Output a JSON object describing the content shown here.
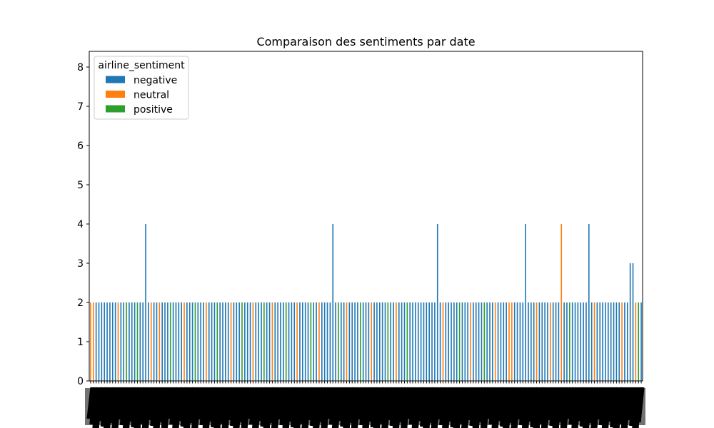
{
  "chart_data": {
    "type": "bar",
    "title": "Comparaison des sentiments par date",
    "xlabel": "",
    "ylabel": "",
    "ylim": [
      0,
      8.4
    ],
    "yticks": [
      0,
      1,
      2,
      3,
      4,
      5,
      6,
      7,
      8
    ],
    "grid": false,
    "x_tick_labels_legible": false,
    "legend": {
      "title": "airline_sentiment",
      "location": "top-left"
    },
    "series": [
      {
        "name": "negative",
        "color": "#1f77b4"
      },
      {
        "name": "neutral",
        "color": "#ff7f0e"
      },
      {
        "name": "positive",
        "color": "#2ca02c"
      }
    ],
    "groups": [
      {
        "s": "neutral",
        "v": 2
      },
      {
        "s": "neutral",
        "v": 2
      },
      {
        "s": "negative",
        "v": 2
      },
      {
        "s": "negative",
        "v": 2
      },
      {
        "s": "negative",
        "v": 2
      },
      {
        "s": "negative",
        "v": 2
      },
      {
        "s": "negative",
        "v": 2
      },
      {
        "s": "negative",
        "v": 2
      },
      {
        "s": "negative",
        "v": 2
      },
      {
        "s": "negative",
        "v": 2
      },
      {
        "s": "neutral",
        "v": 2
      },
      {
        "s": "negative",
        "v": 2
      },
      {
        "s": "negative",
        "v": 2
      },
      {
        "s": "positive",
        "v": 2
      },
      {
        "s": "negative",
        "v": 2
      },
      {
        "s": "negative",
        "v": 2
      },
      {
        "s": "negative",
        "v": 2
      },
      {
        "s": "positive",
        "v": 2
      },
      {
        "s": "negative",
        "v": 2
      },
      {
        "s": "negative",
        "v": 2
      },
      {
        "s": "negative",
        "v": 4
      },
      {
        "s": "negative",
        "v": 2
      },
      {
        "s": "neutral",
        "v": 2
      },
      {
        "s": "negative",
        "v": 2
      },
      {
        "s": "negative",
        "v": 2
      },
      {
        "s": "neutral",
        "v": 2
      },
      {
        "s": "negative",
        "v": 2
      },
      {
        "s": "negative",
        "v": 2
      },
      {
        "s": "negative",
        "v": 2
      },
      {
        "s": "positive",
        "v": 2
      },
      {
        "s": "negative",
        "v": 2
      },
      {
        "s": "negative",
        "v": 2
      },
      {
        "s": "negative",
        "v": 2
      },
      {
        "s": "negative",
        "v": 2
      },
      {
        "s": "neutral",
        "v": 2
      },
      {
        "s": "negative",
        "v": 2
      },
      {
        "s": "negative",
        "v": 2
      },
      {
        "s": "negative",
        "v": 2
      },
      {
        "s": "positive",
        "v": 2
      },
      {
        "s": "negative",
        "v": 2
      },
      {
        "s": "negative",
        "v": 2
      },
      {
        "s": "negative",
        "v": 2
      },
      {
        "s": "neutral",
        "v": 2
      },
      {
        "s": "negative",
        "v": 2
      },
      {
        "s": "negative",
        "v": 2
      },
      {
        "s": "negative",
        "v": 2
      },
      {
        "s": "positive",
        "v": 2
      },
      {
        "s": "negative",
        "v": 2
      },
      {
        "s": "negative",
        "v": 2
      },
      {
        "s": "negative",
        "v": 2
      },
      {
        "s": "negative",
        "v": 2
      },
      {
        "s": "neutral",
        "v": 2
      },
      {
        "s": "negative",
        "v": 2
      },
      {
        "s": "negative",
        "v": 2
      },
      {
        "s": "negative",
        "v": 2
      },
      {
        "s": "positive",
        "v": 2
      },
      {
        "s": "negative",
        "v": 2
      },
      {
        "s": "negative",
        "v": 2
      },
      {
        "s": "negative",
        "v": 2
      },
      {
        "s": "neutral",
        "v": 2
      },
      {
        "s": "negative",
        "v": 2
      },
      {
        "s": "negative",
        "v": 2
      },
      {
        "s": "negative",
        "v": 2
      },
      {
        "s": "positive",
        "v": 2
      },
      {
        "s": "negative",
        "v": 2
      },
      {
        "s": "negative",
        "v": 2
      },
      {
        "s": "neutral",
        "v": 2
      },
      {
        "s": "negative",
        "v": 2
      },
      {
        "s": "negative",
        "v": 2
      },
      {
        "s": "negative",
        "v": 2
      },
      {
        "s": "negative",
        "v": 2
      },
      {
        "s": "positive",
        "v": 2
      },
      {
        "s": "negative",
        "v": 2
      },
      {
        "s": "negative",
        "v": 2
      },
      {
        "s": "negative",
        "v": 2
      },
      {
        "s": "neutral",
        "v": 2
      },
      {
        "s": "negative",
        "v": 2
      },
      {
        "s": "negative",
        "v": 2
      },
      {
        "s": "negative",
        "v": 2
      },
      {
        "s": "negative",
        "v": 2
      },
      {
        "s": "positive",
        "v": 2
      },
      {
        "s": "negative",
        "v": 2
      },
      {
        "s": "negative",
        "v": 2
      },
      {
        "s": "neutral",
        "v": 2
      },
      {
        "s": "negative",
        "v": 2
      },
      {
        "s": "negative",
        "v": 2
      },
      {
        "s": "negative",
        "v": 2
      },
      {
        "s": "negative",
        "v": 2
      },
      {
        "s": "negative",
        "v": 4
      },
      {
        "s": "negative",
        "v": 2
      },
      {
        "s": "positive",
        "v": 2
      },
      {
        "s": "negative",
        "v": 2
      },
      {
        "s": "negative",
        "v": 2
      },
      {
        "s": "neutral",
        "v": 2
      },
      {
        "s": "negative",
        "v": 2
      },
      {
        "s": "negative",
        "v": 2
      },
      {
        "s": "negative",
        "v": 2
      },
      {
        "s": "negative",
        "v": 2
      },
      {
        "s": "positive",
        "v": 2
      },
      {
        "s": "negative",
        "v": 2
      },
      {
        "s": "negative",
        "v": 2
      },
      {
        "s": "negative",
        "v": 2
      },
      {
        "s": "neutral",
        "v": 2
      },
      {
        "s": "negative",
        "v": 2
      },
      {
        "s": "negative",
        "v": 2
      },
      {
        "s": "negative",
        "v": 2
      },
      {
        "s": "negative",
        "v": 2
      },
      {
        "s": "negative",
        "v": 2
      },
      {
        "s": "positive",
        "v": 2
      },
      {
        "s": "negative",
        "v": 2
      },
      {
        "s": "negative",
        "v": 2
      },
      {
        "s": "neutral",
        "v": 2
      },
      {
        "s": "negative",
        "v": 2
      },
      {
        "s": "negative",
        "v": 2
      },
      {
        "s": "negative",
        "v": 2
      },
      {
        "s": "positive",
        "v": 2
      },
      {
        "s": "negative",
        "v": 2
      },
      {
        "s": "negative",
        "v": 2
      },
      {
        "s": "negative",
        "v": 2
      },
      {
        "s": "negative",
        "v": 2
      },
      {
        "s": "negative",
        "v": 2
      },
      {
        "s": "negative",
        "v": 2
      },
      {
        "s": "negative",
        "v": 2
      },
      {
        "s": "negative",
        "v": 2
      },
      {
        "s": "negative",
        "v": 2
      },
      {
        "s": "negative",
        "v": 2
      },
      {
        "s": "negative",
        "v": 4
      },
      {
        "s": "negative",
        "v": 2
      },
      {
        "s": "neutral",
        "v": 2
      },
      {
        "s": "negative",
        "v": 2
      },
      {
        "s": "negative",
        "v": 2
      },
      {
        "s": "negative",
        "v": 2
      },
      {
        "s": "negative",
        "v": 2
      },
      {
        "s": "negative",
        "v": 2
      },
      {
        "s": "positive",
        "v": 2
      },
      {
        "s": "negative",
        "v": 2
      },
      {
        "s": "negative",
        "v": 2
      },
      {
        "s": "negative",
        "v": 2
      },
      {
        "s": "neutral",
        "v": 2
      },
      {
        "s": "negative",
        "v": 2
      },
      {
        "s": "negative",
        "v": 2
      },
      {
        "s": "negative",
        "v": 2
      },
      {
        "s": "negative",
        "v": 2
      },
      {
        "s": "positive",
        "v": 2
      },
      {
        "s": "negative",
        "v": 2
      },
      {
        "s": "negative",
        "v": 2
      },
      {
        "s": "negative",
        "v": 2
      },
      {
        "s": "neutral",
        "v": 2
      },
      {
        "s": "negative",
        "v": 2
      },
      {
        "s": "negative",
        "v": 2
      },
      {
        "s": "negative",
        "v": 2
      },
      {
        "s": "negative",
        "v": 2
      },
      {
        "s": "neutral",
        "v": 2
      },
      {
        "s": "neutral",
        "v": 2
      },
      {
        "s": "negative",
        "v": 2
      },
      {
        "s": "negative",
        "v": 2
      },
      {
        "s": "negative",
        "v": 2
      },
      {
        "s": "negative",
        "v": 2
      },
      {
        "s": "negative",
        "v": 4
      },
      {
        "s": "negative",
        "v": 2
      },
      {
        "s": "negative",
        "v": 2
      },
      {
        "s": "negative",
        "v": 2
      },
      {
        "s": "neutral",
        "v": 2
      },
      {
        "s": "negative",
        "v": 2
      },
      {
        "s": "negative",
        "v": 2
      },
      {
        "s": "negative",
        "v": 2
      },
      {
        "s": "negative",
        "v": 2
      },
      {
        "s": "neutral",
        "v": 2
      },
      {
        "s": "negative",
        "v": 2
      },
      {
        "s": "negative",
        "v": 2
      },
      {
        "s": "negative",
        "v": 2
      },
      {
        "s": "neutral",
        "v": 4
      },
      {
        "s": "negative",
        "v": 2
      },
      {
        "s": "negative",
        "v": 2
      },
      {
        "s": "positive",
        "v": 2
      },
      {
        "s": "negative",
        "v": 2
      },
      {
        "s": "negative",
        "v": 2
      },
      {
        "s": "negative",
        "v": 2
      },
      {
        "s": "negative",
        "v": 2
      },
      {
        "s": "negative",
        "v": 2
      },
      {
        "s": "negative",
        "v": 2
      },
      {
        "s": "negative",
        "v": 4
      },
      {
        "s": "negative",
        "v": 2
      },
      {
        "s": "neutral",
        "v": 2
      },
      {
        "s": "negative",
        "v": 2
      },
      {
        "s": "negative",
        "v": 2
      },
      {
        "s": "negative",
        "v": 2
      },
      {
        "s": "negative",
        "v": 2
      },
      {
        "s": "negative",
        "v": 2
      },
      {
        "s": "negative",
        "v": 2
      },
      {
        "s": "negative",
        "v": 2
      },
      {
        "s": "negative",
        "v": 2
      },
      {
        "s": "negative",
        "v": 2
      },
      {
        "s": "neutral",
        "v": 2
      },
      {
        "s": "negative",
        "v": 2
      },
      {
        "s": "negative",
        "v": 2
      },
      {
        "s": "negative",
        "v": 3
      },
      {
        "s": "negative",
        "v": 3
      },
      {
        "s": "neutral",
        "v": 2
      },
      {
        "s": "positive",
        "v": 2
      },
      {
        "s": "negative",
        "v": 2
      }
    ]
  }
}
